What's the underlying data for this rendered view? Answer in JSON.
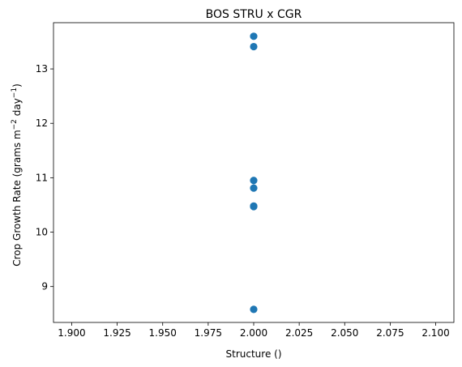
{
  "chart_data": {
    "type": "scatter",
    "title": "BOS STRU x CGR",
    "xlabel": "Structure ()",
    "ylabel_base": "Crop Growth Rate (grams m",
    "ylabel_sup1": "−2",
    "ylabel_mid": " day",
    "ylabel_sup2": "−1",
    "ylabel_end": ")",
    "xlim": [
      1.89,
      2.11
    ],
    "ylim": [
      8.34,
      13.85
    ],
    "x_ticks": [
      1.9,
      1.925,
      1.95,
      1.975,
      2.0,
      2.025,
      2.05,
      2.075,
      2.1
    ],
    "x_tick_labels": [
      "1.900",
      "1.925",
      "1.950",
      "1.975",
      "2.000",
      "2.025",
      "2.050",
      "2.075",
      "2.100"
    ],
    "y_ticks": [
      9,
      10,
      11,
      12,
      13
    ],
    "y_tick_labels": [
      "9",
      "10",
      "11",
      "12",
      "13"
    ],
    "grid": false,
    "marker_color": "#1f77b4",
    "points": [
      {
        "x": 2.0,
        "y": 13.6
      },
      {
        "x": 2.0,
        "y": 13.41
      },
      {
        "x": 2.0,
        "y": 10.95
      },
      {
        "x": 2.0,
        "y": 10.81
      },
      {
        "x": 2.0,
        "y": 10.48
      },
      {
        "x": 2.0,
        "y": 10.47
      },
      {
        "x": 2.0,
        "y": 8.58
      }
    ]
  }
}
